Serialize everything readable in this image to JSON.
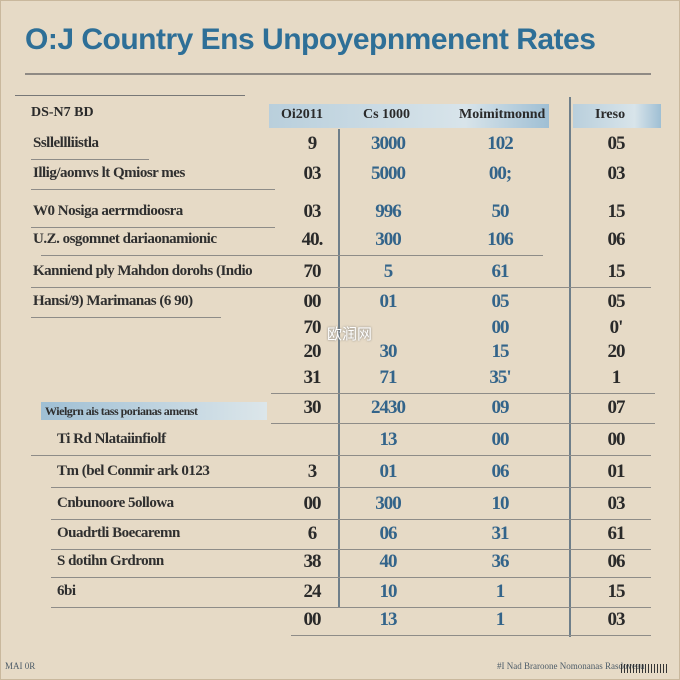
{
  "title": "O:J Country Ens Unpoyepnmenent Rates",
  "header": {
    "row_label": "DS-N7 BD",
    "col1": "Oi2011",
    "col2": "Cs 1000",
    "col3": "Moimitmonnd",
    "col4": "Ireso"
  },
  "section_heading": "Wielgrn ais tass porianas amenst",
  "watermark": "欧润网",
  "footer_left": "MAI 0R",
  "footer_right": "#I Nad Braroone Nomonanas Rasdoveau",
  "rows_top": [
    {
      "label": "Ssllellliistla",
      "c1": "9",
      "c2": "3000",
      "c3": "102",
      "c4": "05"
    },
    {
      "label": "Illig/aomvs lt Qmiosr mes",
      "c1": "03",
      "c2": "5000",
      "c3": "00;",
      "c4": "03"
    },
    {
      "label": "W0 Nosiga aerrmdioosra",
      "c1": "03",
      "c2": "996",
      "c3": "50",
      "c4": "15"
    },
    {
      "label": "U.Z. osgomnet dariaonamionic",
      "c1": "40.",
      "c2": "300",
      "c3": "106",
      "c4": "06"
    },
    {
      "label": "Kanniend ply Mahdon dorohs (Indio",
      "c1": "70",
      "c2": "5",
      "c3": "61",
      "c4": "15"
    },
    {
      "label": "Hansi/9) Marimanas (6 90)",
      "c1": "00",
      "c2": "01",
      "c3": "05",
      "c4": "05"
    },
    {
      "label": "",
      "c1": "70",
      "c2": "",
      "c3": "00",
      "c4": "0'"
    },
    {
      "label": "",
      "c1": "20",
      "c2": "30",
      "c3": "15",
      "c4": "20"
    },
    {
      "label": "",
      "c1": "31",
      "c2": "71",
      "c3": "35'",
      "c4": "1"
    }
  ],
  "rows_bottom": [
    {
      "label": "",
      "c1": "30",
      "c2": "2430",
      "c3": "09",
      "c4": "07"
    },
    {
      "label": "Ti Rd Nlataiinfiolf",
      "c1": "",
      "c2": "13",
      "c3": "00",
      "c4": "00"
    },
    {
      "label": "Tm (bel Conmir ark 0123",
      "c1": "3",
      "c2": "01",
      "c3": "06",
      "c4": "01"
    },
    {
      "label": "Cnbunoore 5ollowa",
      "c1": "00",
      "c2": "300",
      "c3": "10",
      "c4": "03"
    },
    {
      "label": "Ouadrtli Boecaremn",
      "c1": "6",
      "c2": "06",
      "c3": "31",
      "c4": "61"
    },
    {
      "label": "S dotihn Grdronn",
      "c1": "38",
      "c2": "40",
      "c3": "36",
      "c4": "06"
    },
    {
      "label": "6bi",
      "c1": "24",
      "c2": "10",
      "c3": "1",
      "c4": "15"
    },
    {
      "label": "",
      "c1": "00",
      "c2": "13",
      "c3": "1",
      "c4": "03"
    }
  ]
}
